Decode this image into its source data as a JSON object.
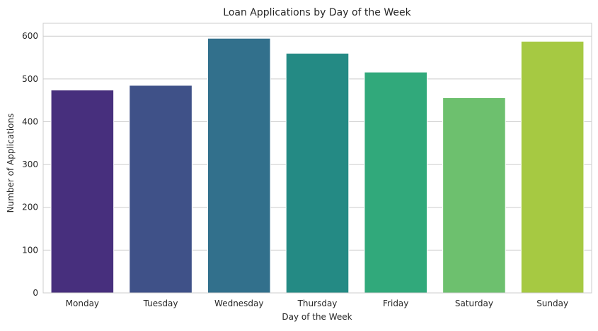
{
  "chart_data": {
    "type": "bar",
    "title": "Loan Applications by Day of the Week",
    "xlabel": "Day of the Week",
    "ylabel": "Number of Applications",
    "categories": [
      "Monday",
      "Tuesday",
      "Wednesday",
      "Thursday",
      "Friday",
      "Saturday",
      "Sunday"
    ],
    "values": [
      474,
      485,
      595,
      560,
      516,
      456,
      588
    ],
    "colors": [
      "#472f7d",
      "#3f5188",
      "#32708c",
      "#248a84",
      "#31a97b",
      "#6dc06e",
      "#a6c942"
    ],
    "ylim": [
      0,
      630
    ],
    "yticks": [
      0,
      100,
      200,
      300,
      400,
      500,
      600
    ],
    "grid": "horizontal",
    "grid_color": "#cccccc",
    "spine_color": "#cccccc"
  }
}
